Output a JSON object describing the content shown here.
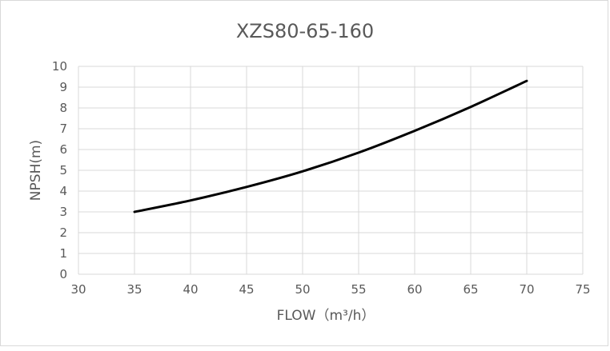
{
  "chart_data": {
    "type": "line",
    "title": "XZS80-65-160",
    "xlabel": "FLOW（m³/h）",
    "ylabel": "NPSH(m)",
    "xlim": [
      30,
      75
    ],
    "ylim": [
      0,
      10
    ],
    "x_ticks": [
      "30",
      "35",
      "40",
      "45",
      "50",
      "55",
      "60",
      "65",
      "70",
      "75"
    ],
    "y_ticks": [
      "0",
      "1",
      "2",
      "3",
      "4",
      "5",
      "6",
      "7",
      "8",
      "9",
      "10"
    ],
    "grid": true,
    "legend": "none",
    "series": [
      {
        "color": "#000000",
        "x": [
          35,
          40,
          45,
          50,
          55,
          60,
          65,
          70
        ],
        "y": [
          3.0,
          3.55,
          4.2,
          4.95,
          5.85,
          6.9,
          8.05,
          9.3
        ]
      }
    ]
  }
}
